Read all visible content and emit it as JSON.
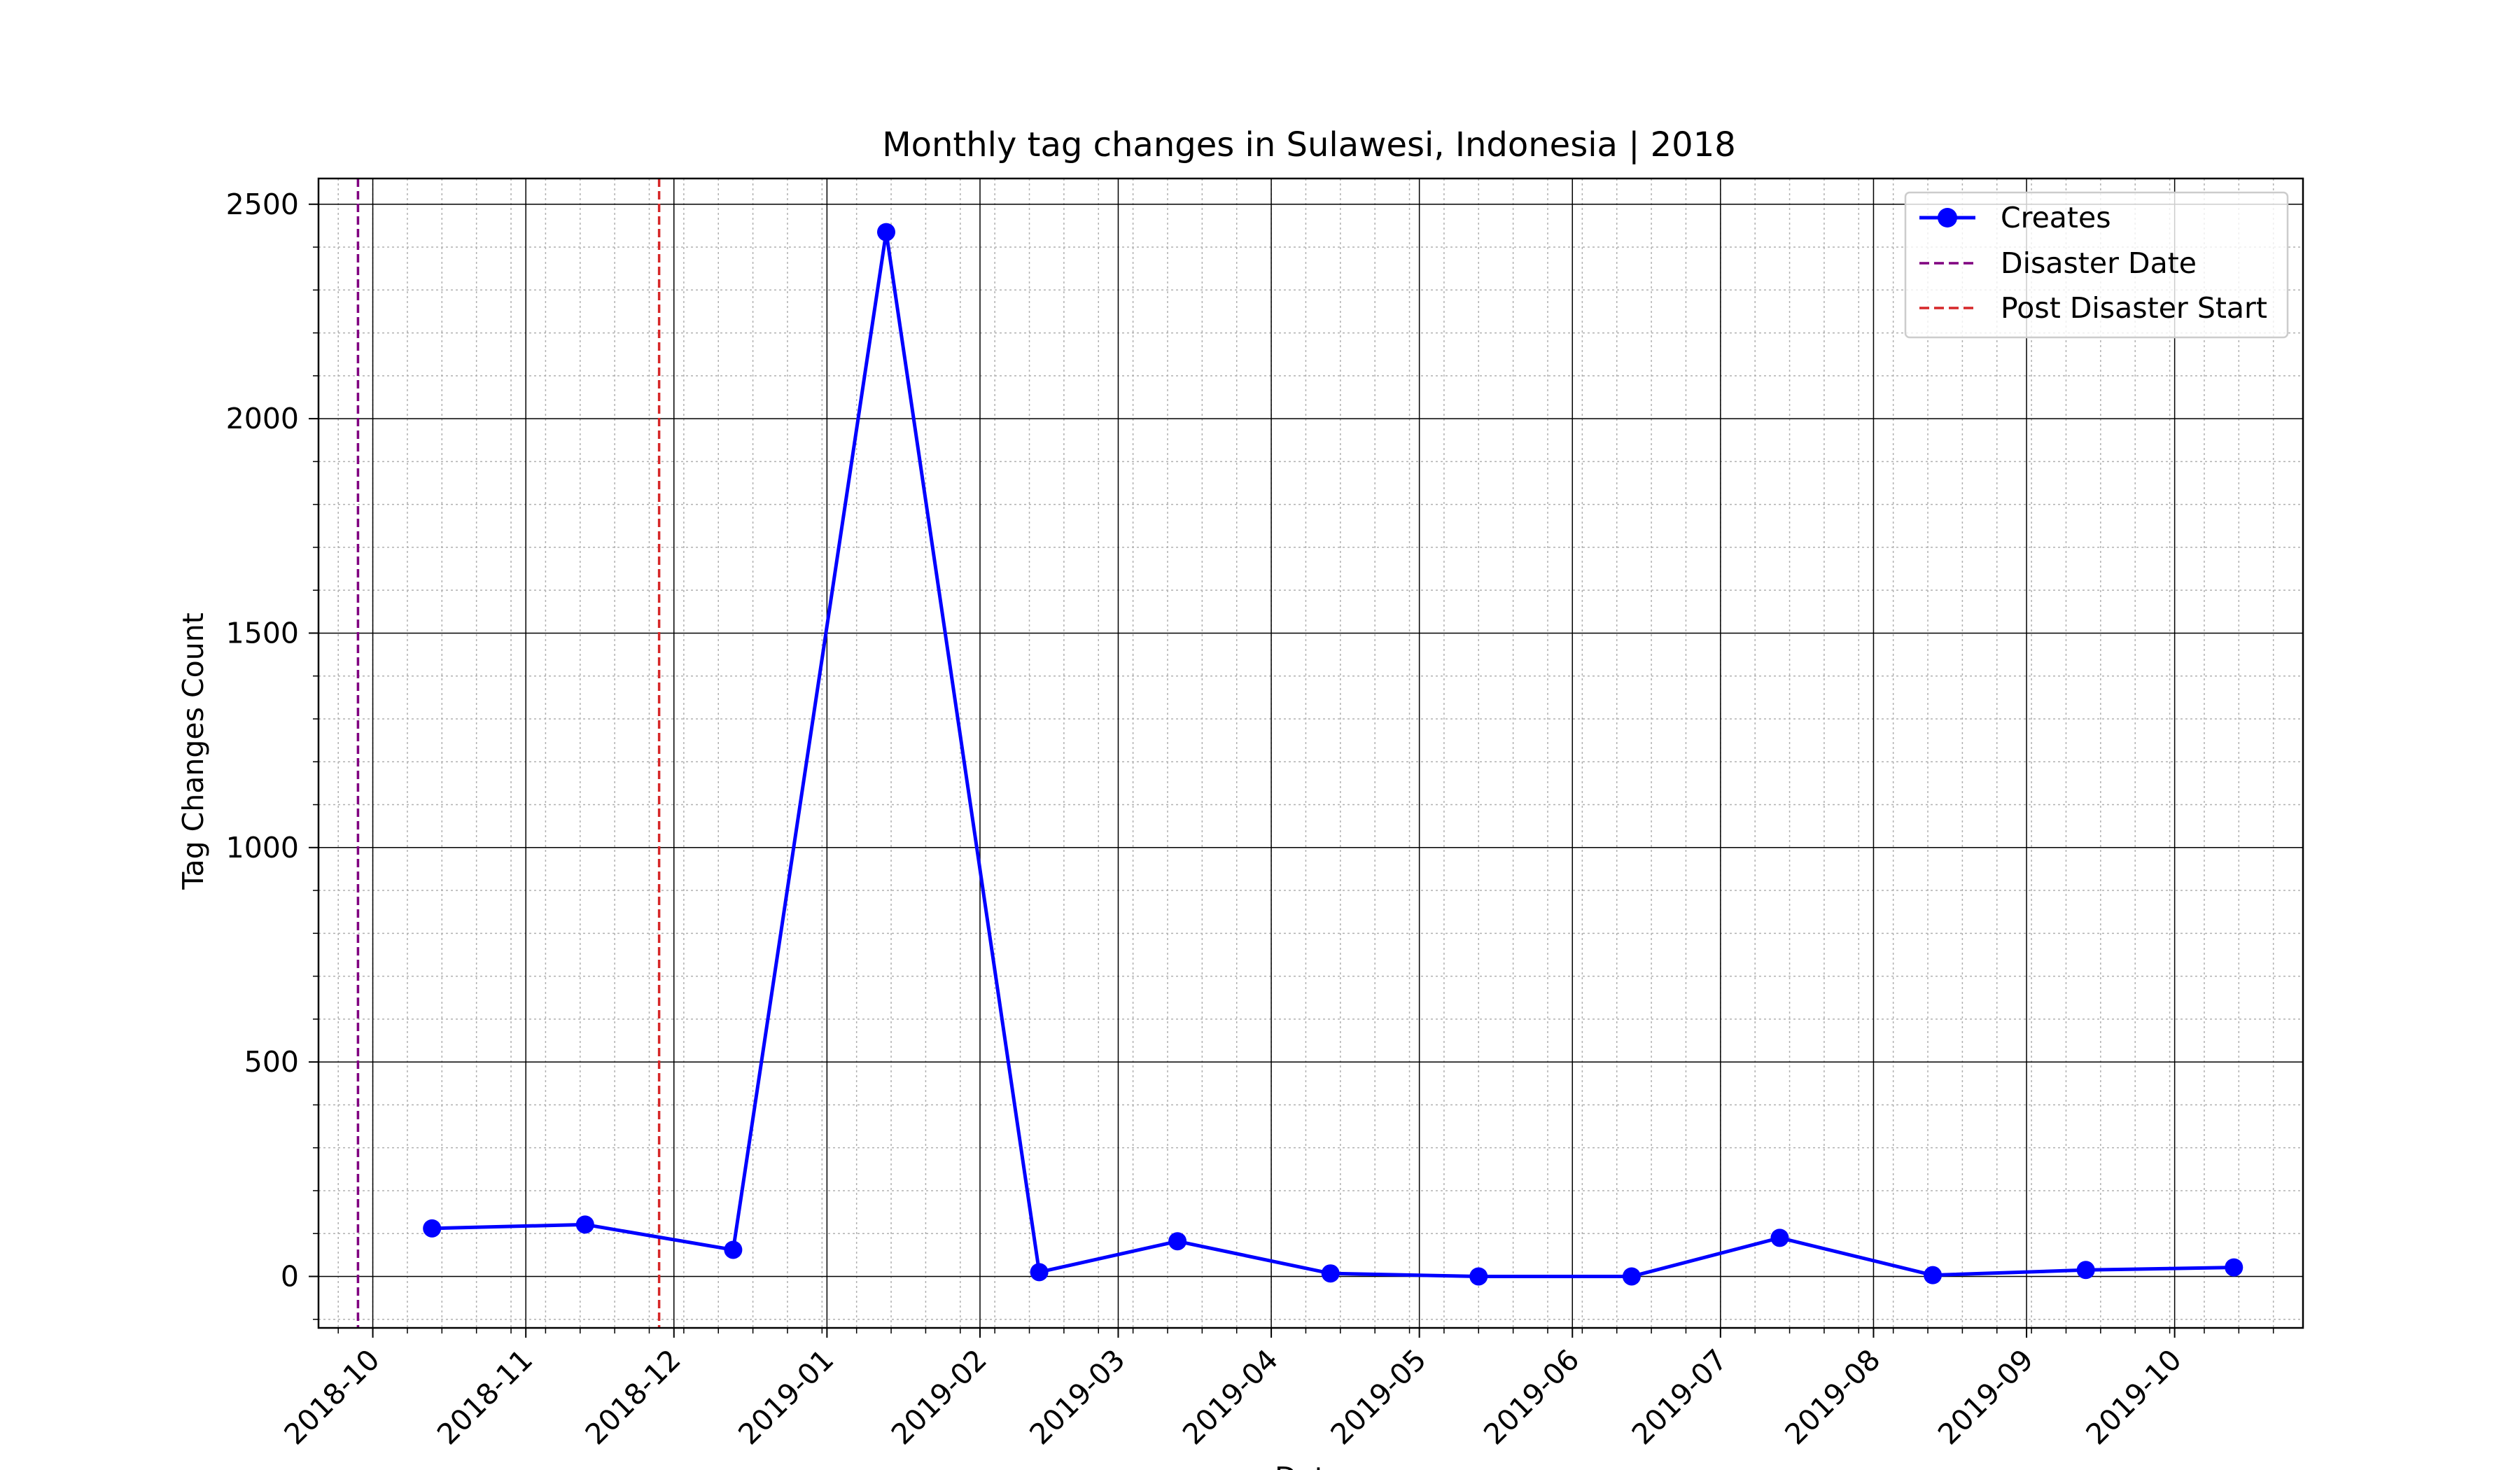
{
  "chart_data": {
    "type": "line",
    "title": "Monthly tag changes in Sulawesi, Indonesia | 2018",
    "xlabel": "Date",
    "ylabel": "Tag Changes Count",
    "xlim": [
      "2018-09-20",
      "2019-10-27"
    ],
    "ylim": [
      -120,
      2560
    ],
    "x_ticks": [
      "2018-10",
      "2018-11",
      "2018-12",
      "2019-01",
      "2019-02",
      "2019-03",
      "2019-04",
      "2019-05",
      "2019-06",
      "2019-07",
      "2019-08",
      "2019-09",
      "2019-10"
    ],
    "y_ticks": [
      0,
      500,
      1000,
      1500,
      2000,
      2500
    ],
    "grid": "major solid, minor dotted",
    "legend_position": "top-right",
    "series": [
      {
        "name": "Creates",
        "color": "#0000ff",
        "marker": "circle",
        "x": [
          "2018-10-13",
          "2018-11-13",
          "2018-12-13",
          "2019-01-13",
          "2019-02-13",
          "2019-03-13",
          "2019-04-13",
          "2019-05-13",
          "2019-06-13",
          "2019-07-13",
          "2019-08-13",
          "2019-09-13",
          "2019-10-13"
        ],
        "values": [
          112,
          121,
          62,
          2435,
          10,
          82,
          7,
          0,
          0,
          90,
          3,
          15,
          21
        ]
      }
    ],
    "vlines": [
      {
        "name": "Disaster Date",
        "x": "2018-09-28",
        "color": "#800080",
        "style": "dashed"
      },
      {
        "name": "Post Disaster Start",
        "x": "2018-11-28",
        "color": "#d62728",
        "style": "dashed"
      }
    ]
  }
}
